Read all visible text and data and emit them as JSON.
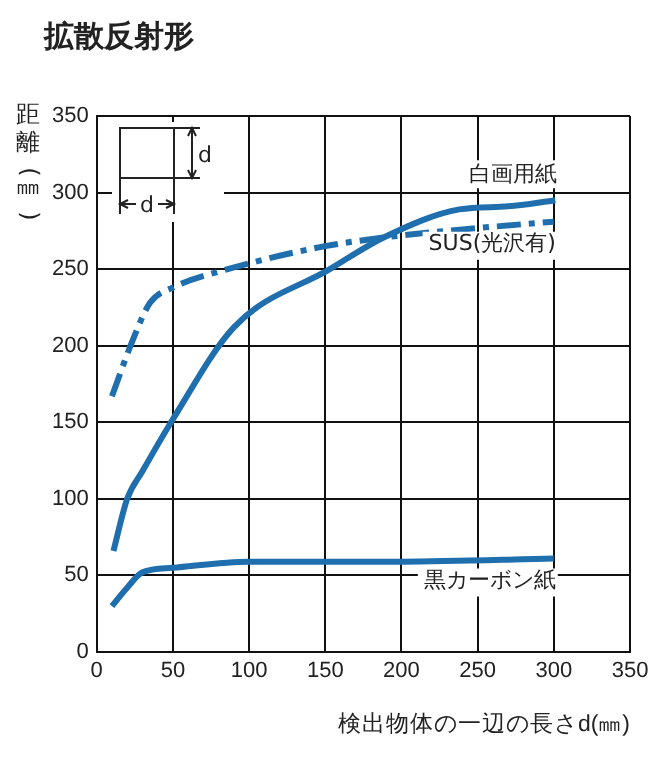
{
  "chart_data": {
    "type": "line",
    "title": "拡散反射形",
    "xlabel": "検出物体の一辺の長さd(㎜)",
    "ylabel": "距離(㎜)",
    "xlim": [
      0,
      350
    ],
    "xticks": [
      0,
      50,
      100,
      150,
      200,
      250,
      300,
      350
    ],
    "ylim": [
      0,
      350
    ],
    "yticks": [
      0,
      50,
      100,
      150,
      200,
      250,
      300,
      350
    ],
    "grid": true,
    "marker": "none",
    "annotations": [
      "d",
      "d"
    ],
    "series": [
      {
        "name": "白画用紙",
        "color": "#1f6fae",
        "line_style": "solid",
        "x": [
          11,
          20,
          30,
          50,
          90,
          153,
          189,
          238,
          270,
          301
        ],
        "values": [
          66,
          100,
          118,
          152,
          212,
          250,
          271,
          289,
          291,
          295
        ]
      },
      {
        "name": "SUS(光沢有)",
        "color": "#1f6fae",
        "line_style": "dashed",
        "x": [
          10,
          23,
          35,
          50,
          86,
          150,
          200,
          252,
          300
        ],
        "values": [
          167,
          202,
          228,
          238,
          250,
          265,
          272,
          277,
          281
        ]
      },
      {
        "name": "黒カーボン紙",
        "color": "#1f6fae",
        "line_style": "solid",
        "x": [
          10,
          20,
          30,
          50,
          100,
          200,
          300
        ],
        "values": [
          30,
          42,
          52,
          55,
          59,
          59,
          61
        ]
      }
    ]
  }
}
